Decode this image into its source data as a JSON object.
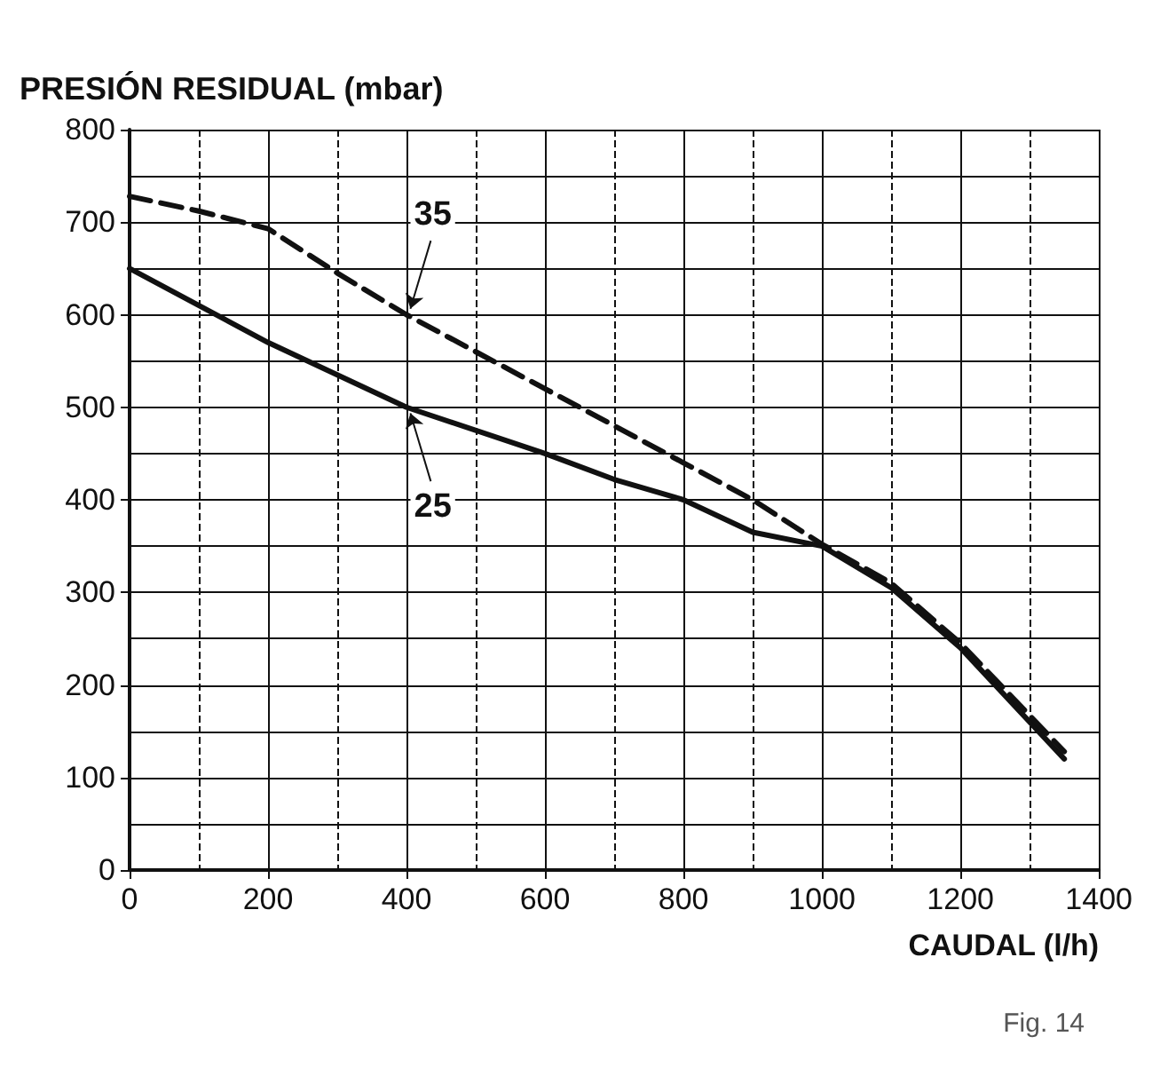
{
  "chart_data": {
    "type": "line",
    "ylabel": "PRESIÓN RESIDUAL (mbar)",
    "xlabel": "CAUDAL (l/h)",
    "xlim": [
      0,
      1400
    ],
    "xticks": [
      0,
      200,
      400,
      600,
      800,
      1000,
      1200,
      1400
    ],
    "ylim": [
      0,
      800
    ],
    "yticks": [
      0,
      100,
      200,
      300,
      400,
      500,
      600,
      700,
      800
    ],
    "grid": true,
    "marker": "none",
    "series": [
      {
        "color": "#111111",
        "line_style": "solid",
        "x": [
          0,
          200,
          400,
          600,
          700,
          800,
          900,
          1000,
          1100,
          1200,
          1350
        ],
        "values": [
          650,
          570,
          500,
          450,
          422,
          400,
          365,
          350,
          305,
          240,
          120
        ]
      },
      {
        "color": "#111111",
        "line_style": "dashed",
        "x": [
          0,
          100,
          200,
          300,
          400,
          600,
          800,
          900,
          1000,
          1100,
          1200,
          1350
        ],
        "values": [
          728,
          712,
          693,
          645,
          600,
          520,
          440,
          400,
          352,
          310,
          245,
          128
        ]
      }
    ],
    "annotations": [
      {
        "text": "35",
        "x": 400,
        "y": 600
      },
      {
        "text": "25",
        "x": 400,
        "y": 500
      },
      "Fig. 14"
    ]
  }
}
